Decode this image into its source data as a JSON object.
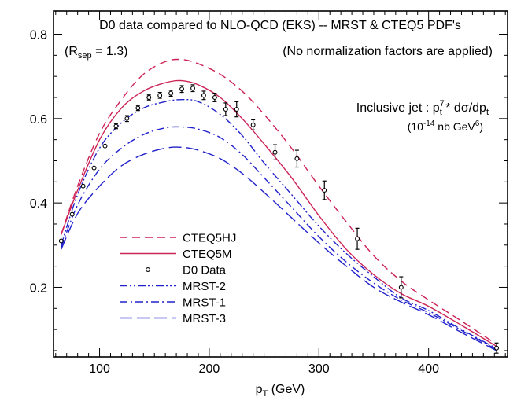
{
  "chart_data": {
    "type": "line",
    "title": "D0 data compared to NLO-QCD (EKS) -- MRST & CTEQ5 PDF's",
    "rsep_label": {
      "prefix": "(R",
      "sub": "sep",
      "suffix": " = 1.3)"
    },
    "note": "(No normalization factors are applied)",
    "ylabel_line1": {
      "a": "Inclusive jet : p",
      "sup": "7",
      "sub": "t",
      "b": " * dσ/dp",
      "sub2": "t"
    },
    "ylabel_line2": {
      "a": "(10",
      "sup": "-14",
      "b": " nb GeV",
      "sup2": "6",
      "c": ")"
    },
    "xlabel": {
      "a": "p",
      "sub": "T",
      "b": "  (GeV)"
    },
    "xlim": [
      58,
      472
    ],
    "ylim": [
      0.035,
      0.855
    ],
    "xticks": [
      100,
      200,
      300,
      400
    ],
    "xtick_labels": [
      "100",
      "200",
      "300",
      "400"
    ],
    "yticks": [
      0.2,
      0.4,
      0.6,
      0.8
    ],
    "ytick_labels": [
      "0.2",
      "0.4",
      "0.6",
      "0.8"
    ],
    "series": [
      {
        "name": "CTEQ5HJ",
        "style": "dashed",
        "color": "#cc2255",
        "x": [
          65,
          80,
          100,
          120,
          140,
          160,
          175,
          190,
          210,
          230,
          250,
          275,
          300,
          325,
          350,
          375,
          400,
          430,
          462
        ],
        "y": [
          0.325,
          0.44,
          0.565,
          0.645,
          0.705,
          0.735,
          0.74,
          0.73,
          0.705,
          0.665,
          0.61,
          0.53,
          0.44,
          0.355,
          0.275,
          0.215,
          0.17,
          0.12,
          0.065
        ]
      },
      {
        "name": "CTEQ5M",
        "style": "solid",
        "color": "#cc2255",
        "x": [
          65,
          80,
          100,
          120,
          140,
          160,
          175,
          190,
          210,
          230,
          250,
          275,
          300,
          325,
          350,
          375,
          400,
          430,
          462
        ],
        "y": [
          0.325,
          0.43,
          0.55,
          0.625,
          0.665,
          0.685,
          0.69,
          0.68,
          0.65,
          0.6,
          0.54,
          0.46,
          0.37,
          0.29,
          0.23,
          0.185,
          0.155,
          0.11,
          0.06
        ]
      },
      {
        "name": "MRST-2",
        "style": "dashdotdot",
        "color": "#2222cc",
        "x": [
          65,
          80,
          100,
          120,
          140,
          160,
          175,
          190,
          210,
          230,
          250,
          275,
          300,
          325,
          350,
          375,
          400,
          430,
          462
        ],
        "y": [
          0.3,
          0.42,
          0.53,
          0.59,
          0.625,
          0.64,
          0.645,
          0.64,
          0.61,
          0.56,
          0.495,
          0.42,
          0.345,
          0.28,
          0.225,
          0.175,
          0.145,
          0.1,
          0.055
        ]
      },
      {
        "name": "MRST-1",
        "style": "dashdot",
        "color": "#2222cc",
        "x": [
          65,
          80,
          100,
          120,
          140,
          160,
          175,
          190,
          210,
          230,
          250,
          275,
          300,
          325,
          350,
          375,
          400,
          430,
          462
        ],
        "y": [
          0.295,
          0.395,
          0.48,
          0.53,
          0.562,
          0.578,
          0.58,
          0.575,
          0.555,
          0.515,
          0.46,
          0.39,
          0.32,
          0.26,
          0.21,
          0.17,
          0.14,
          0.098,
          0.052
        ]
      },
      {
        "name": "MRST-3",
        "style": "longdash",
        "color": "#2222cc",
        "x": [
          65,
          80,
          100,
          120,
          140,
          160,
          175,
          190,
          210,
          230,
          250,
          275,
          300,
          325,
          350,
          375,
          400,
          430,
          462
        ],
        "y": [
          0.29,
          0.375,
          0.44,
          0.488,
          0.515,
          0.53,
          0.532,
          0.525,
          0.505,
          0.47,
          0.425,
          0.365,
          0.305,
          0.25,
          0.2,
          0.165,
          0.135,
          0.093,
          0.05
        ]
      }
    ],
    "data_series": {
      "name": "D0 Data",
      "x": [
        65,
        75,
        85,
        95,
        105,
        115,
        125,
        135,
        145,
        155,
        165,
        175,
        185,
        195,
        205,
        215,
        225,
        240,
        260,
        280,
        305,
        335,
        375,
        462
      ],
      "y": [
        0.31,
        0.373,
        0.44,
        0.483,
        0.535,
        0.582,
        0.6,
        0.625,
        0.65,
        0.655,
        0.66,
        0.67,
        0.672,
        0.655,
        0.65,
        0.622,
        0.622,
        0.585,
        0.52,
        0.505,
        0.43,
        0.315,
        0.2,
        0.056
      ],
      "err": [
        0.004,
        0.004,
        0.005,
        0.005,
        0.005,
        0.006,
        0.007,
        0.006,
        0.006,
        0.007,
        0.007,
        0.008,
        0.008,
        0.01,
        0.01,
        0.015,
        0.018,
        0.012,
        0.018,
        0.02,
        0.022,
        0.025,
        0.025,
        0.012
      ]
    }
  }
}
